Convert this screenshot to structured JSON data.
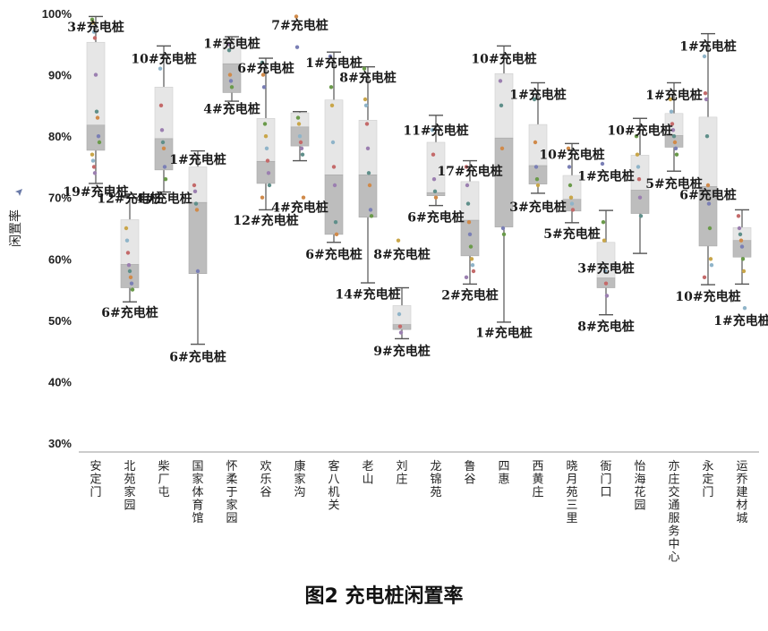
{
  "caption": "图2 充电桩闲置率",
  "chart_data": {
    "type": "box",
    "ylabel": "闲置率",
    "ylim": [
      0.3,
      1.0
    ],
    "yticks": [
      "30%",
      "40%",
      "50%",
      "60%",
      "70%",
      "80%",
      "90%",
      "100%"
    ],
    "grid": false,
    "categories": [
      "安定门",
      "北苑家园",
      "柴厂屯",
      "国家体育馆",
      "怀柔于家园",
      "欢乐谷",
      "康家沟",
      "客八机关",
      "老山",
      "刘庄",
      "龙锦苑",
      "鲁谷",
      "四惠",
      "西黄庄",
      "晓月苑三里",
      "衙门口",
      "怡海花园",
      "亦庄交通服务中心",
      "永定门",
      "运乔建材城"
    ],
    "boxes": [
      {
        "min": 0.723,
        "q1": 0.777,
        "median": 0.818,
        "q3": 0.953,
        "max": 0.995
      },
      {
        "min": 0.53,
        "q1": 0.553,
        "median": 0.591,
        "q3": 0.664,
        "max": 0.7
      },
      {
        "min": 0.709,
        "q1": 0.745,
        "median": 0.796,
        "q3": 0.88,
        "max": 0.947
      },
      {
        "min": 0.461,
        "q1": 0.576,
        "median": 0.692,
        "q3": 0.75,
        "max": 0.776
      },
      {
        "min": 0.857,
        "q1": 0.871,
        "median": 0.918,
        "q3": 0.958,
        "max": 0.962
      },
      {
        "min": 0.68,
        "q1": 0.723,
        "median": 0.759,
        "q3": 0.829,
        "max": 0.927
      },
      {
        "min": 0.76,
        "q1": 0.784,
        "median": 0.815,
        "q3": 0.838,
        "max": 0.84
      },
      {
        "min": 0.627,
        "q1": 0.64,
        "median": 0.737,
        "q3": 0.859,
        "max": 0.937
      },
      {
        "min": 0.561,
        "q1": 0.668,
        "median": 0.737,
        "q3": 0.826,
        "max": 0.913
      },
      {
        "min": 0.47,
        "q1": 0.485,
        "median": 0.493,
        "q3": 0.524,
        "max": 0.553
      },
      {
        "min": 0.687,
        "q1": 0.703,
        "median": 0.708,
        "q3": 0.79,
        "max": 0.834
      },
      {
        "min": 0.559,
        "q1": 0.605,
        "median": 0.663,
        "q3": 0.726,
        "max": 0.76
      },
      {
        "min": 0.497,
        "q1": 0.652,
        "median": 0.797,
        "q3": 0.902,
        "max": 0.947
      },
      {
        "min": 0.707,
        "q1": 0.722,
        "median": 0.752,
        "q3": 0.819,
        "max": 0.887
      },
      {
        "min": 0.659,
        "q1": 0.678,
        "median": 0.697,
        "q3": 0.736,
        "max": 0.788
      },
      {
        "min": 0.509,
        "q1": 0.553,
        "median": 0.569,
        "q3": 0.627,
        "max": 0.679
      },
      {
        "min": 0.609,
        "q1": 0.674,
        "median": 0.712,
        "q3": 0.769,
        "max": 0.829
      },
      {
        "min": 0.743,
        "q1": 0.782,
        "median": 0.801,
        "q3": 0.837,
        "max": 0.887
      },
      {
        "min": 0.558,
        "q1": 0.621,
        "median": 0.718,
        "q3": 0.831,
        "max": 0.967
      },
      {
        "min": 0.559,
        "q1": 0.603,
        "median": 0.63,
        "q3": 0.651,
        "max": 0.68
      }
    ],
    "points": [
      [
        0.99,
        0.985,
        0.97,
        0.96,
        0.9,
        0.84,
        0.83,
        0.8,
        0.79,
        0.77,
        0.76,
        0.75,
        0.74
      ],
      [
        0.65,
        0.63,
        0.61,
        0.59,
        0.58,
        0.57,
        0.56,
        0.55
      ],
      [
        0.91,
        0.85,
        0.81,
        0.79,
        0.78,
        0.75,
        0.73
      ],
      [
        0.72,
        0.71,
        0.69,
        0.68,
        0.58
      ],
      [
        0.95,
        0.94,
        0.9,
        0.89,
        0.88
      ],
      [
        0.92,
        0.9,
        0.88,
        0.82,
        0.8,
        0.78,
        0.76,
        0.74,
        0.72,
        0.7
      ],
      [
        0.995,
        0.945,
        0.83,
        0.82,
        0.8,
        0.79,
        0.78,
        0.77,
        0.7
      ],
      [
        0.93,
        0.88,
        0.85,
        0.79,
        0.75,
        0.72,
        0.66,
        0.64
      ],
      [
        0.91,
        0.86,
        0.85,
        0.82,
        0.78,
        0.74,
        0.72,
        0.68,
        0.67
      ],
      [
        0.63,
        0.51,
        0.49,
        0.48
      ],
      [
        0.81,
        0.77,
        0.73,
        0.71,
        0.7
      ],
      [
        0.75,
        0.72,
        0.69,
        0.66,
        0.64,
        0.62,
        0.6,
        0.59,
        0.58,
        0.57
      ],
      [
        0.89,
        0.85,
        0.78,
        0.65,
        0.64
      ],
      [
        0.86,
        0.79,
        0.75,
        0.73,
        0.72
      ],
      [
        0.78,
        0.75,
        0.72,
        0.7,
        0.69,
        0.68
      ],
      [
        0.755,
        0.66,
        0.63,
        0.58,
        0.56,
        0.54
      ],
      [
        0.8,
        0.77,
        0.75,
        0.73,
        0.7,
        0.67
      ],
      [
        0.86,
        0.84,
        0.82,
        0.81,
        0.8,
        0.79,
        0.78,
        0.77
      ],
      [
        0.93,
        0.87,
        0.86,
        0.8,
        0.72,
        0.69,
        0.65,
        0.6,
        0.59,
        0.57
      ],
      [
        0.67,
        0.65,
        0.64,
        0.63,
        0.62,
        0.6,
        0.58,
        0.52
      ]
    ],
    "annotations": [
      {
        "cat": 0,
        "y": 0.978,
        "text": "3#充电桩"
      },
      {
        "cat": 0,
        "y": 0.71,
        "text": "19#充电桩"
      },
      {
        "cat": 1,
        "y": 0.699,
        "text": "12#充电桩"
      },
      {
        "cat": 1,
        "y": 0.513,
        "text": "6#充电桩"
      },
      {
        "cat": 2,
        "y": 0.926,
        "text": "10#充电桩"
      },
      {
        "cat": 2,
        "y": 0.699,
        "text": "4#充电桩"
      },
      {
        "cat": 3,
        "y": 0.762,
        "text": "1#充电桩"
      },
      {
        "cat": 3,
        "y": 0.441,
        "text": "6#充电桩"
      },
      {
        "cat": 4,
        "y": 0.951,
        "text": "1#充电桩"
      },
      {
        "cat": 4,
        "y": 0.845,
        "text": "4#充电桩"
      },
      {
        "cat": 5,
        "y": 0.911,
        "text": "6#充电桩"
      },
      {
        "cat": 5,
        "y": 0.663,
        "text": "12#充电桩"
      },
      {
        "cat": 6,
        "y": 0.981,
        "text": "7#充电桩"
      },
      {
        "cat": 6,
        "y": 0.684,
        "text": "4#充电桩"
      },
      {
        "cat": 7,
        "y": 0.92,
        "text": "1#充电桩"
      },
      {
        "cat": 7,
        "y": 0.608,
        "text": "6#充电桩"
      },
      {
        "cat": 8,
        "y": 0.896,
        "text": "8#充电桩"
      },
      {
        "cat": 8,
        "y": 0.543,
        "text": "14#充电桩"
      },
      {
        "cat": 9,
        "y": 0.608,
        "text": "8#充电桩"
      },
      {
        "cat": 9,
        "y": 0.45,
        "text": "9#充电桩"
      },
      {
        "cat": 10,
        "y": 0.81,
        "text": "11#充电桩"
      },
      {
        "cat": 10,
        "y": 0.668,
        "text": "6#充电桩"
      },
      {
        "cat": 11,
        "y": 0.743,
        "text": "17#充电桩"
      },
      {
        "cat": 11,
        "y": 0.541,
        "text": "2#充电桩"
      },
      {
        "cat": 12,
        "y": 0.926,
        "text": "10#充电桩"
      },
      {
        "cat": 12,
        "y": 0.48,
        "text": "1#充电桩"
      },
      {
        "cat": 13,
        "y": 0.868,
        "text": "1#充电桩"
      },
      {
        "cat": 13,
        "y": 0.685,
        "text": "3#充电桩"
      },
      {
        "cat": 14,
        "y": 0.77,
        "text": "10#充电桩"
      },
      {
        "cat": 14,
        "y": 0.641,
        "text": "5#充电桩"
      },
      {
        "cat": 15,
        "y": 0.735,
        "text": "1#充电桩"
      },
      {
        "cat": 15,
        "y": 0.49,
        "text": "8#充电桩"
      },
      {
        "cat": 15,
        "y": 0.585,
        "text": "3#充电桩"
      },
      {
        "cat": 16,
        "y": 0.81,
        "text": "10#充电桩"
      },
      {
        "cat": 17,
        "y": 0.867,
        "text": "1#充电桩"
      },
      {
        "cat": 17,
        "y": 0.723,
        "text": "5#充电桩"
      },
      {
        "cat": 18,
        "y": 0.947,
        "text": "1#充电桩"
      },
      {
        "cat": 18,
        "y": 0.705,
        "text": "6#充电桩"
      },
      {
        "cat": 18,
        "y": 0.539,
        "text": "10#充电桩"
      },
      {
        "cat": 19,
        "y": 0.5,
        "text": "1#充电桩"
      }
    ],
    "colors": {
      "box_upper": "#e6e6e6",
      "box_lower": "#bdbdbd",
      "whisker": "#555555",
      "points": [
        "#6a9a4a",
        "#c9a64a",
        "#8fb4c9",
        "#c46a6a",
        "#9b7fb0",
        "#5f8f8a",
        "#d08a4a",
        "#7a7fb5"
      ]
    }
  }
}
